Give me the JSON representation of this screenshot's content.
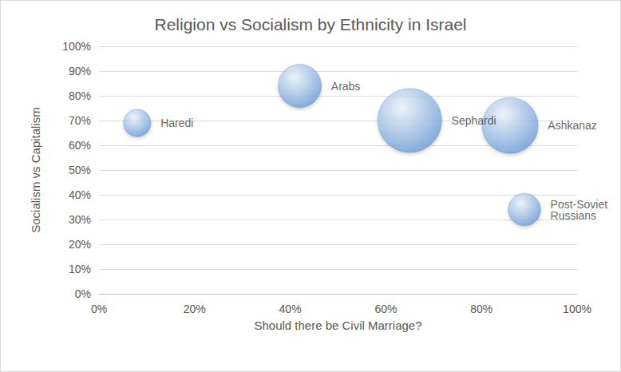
{
  "chart_data": {
    "type": "bubble",
    "title": "Religion vs Socialism by Ethnicity in Israel",
    "x_label": "Should there be Civil Marriage?",
    "y_label": "Socialism vs Capitalism",
    "labels": [
      "Haredi",
      "Arabs",
      "Sephardi",
      "Ashkanaz",
      "Post-Soviet Russians"
    ],
    "x": [
      8,
      42,
      65,
      86,
      89
    ],
    "values": [
      69,
      84,
      70,
      68,
      34
    ],
    "sizes": [
      10,
      25,
      55,
      42,
      14
    ],
    "color": "#6a9bd8",
    "xlim": [
      0,
      100
    ],
    "xticks": [
      {
        "value": 0,
        "label": "0%"
      },
      {
        "value": 20,
        "label": "20%"
      },
      {
        "value": 40,
        "label": "40%"
      },
      {
        "value": 60,
        "label": "60%"
      },
      {
        "value": 80,
        "label": "80%"
      },
      {
        "value": 100,
        "label": "100%"
      }
    ],
    "ylim": [
      0,
      100
    ],
    "yticks": [
      {
        "value": 0,
        "label": "0%"
      },
      {
        "value": 10,
        "label": "10%"
      },
      {
        "value": 20,
        "label": "20%"
      },
      {
        "value": 30,
        "label": "30%"
      },
      {
        "value": 40,
        "label": "40%"
      },
      {
        "value": 50,
        "label": "50%"
      },
      {
        "value": 60,
        "label": "60%"
      },
      {
        "value": 70,
        "label": "70%"
      },
      {
        "value": 80,
        "label": "80%"
      },
      {
        "value": 90,
        "label": "90%"
      },
      {
        "value": 100,
        "label": "100%"
      }
    ],
    "grid": true
  }
}
